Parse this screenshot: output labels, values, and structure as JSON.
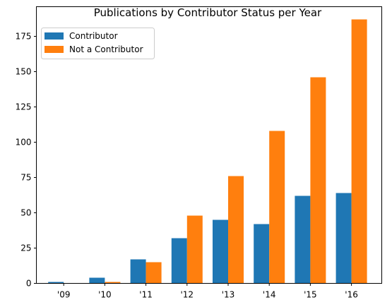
{
  "chart_data": {
    "type": "bar",
    "title": "Publications by Contributor Status per Year",
    "xlabel": "",
    "ylabel": "",
    "categories": [
      "'09",
      "'10",
      "'11",
      "'12",
      "'13",
      "'14",
      "'15",
      "'16"
    ],
    "series": [
      {
        "name": "Contributor",
        "color": "#1f77b4",
        "values": [
          1,
          4,
          17,
          32,
          45,
          42,
          62,
          64
        ]
      },
      {
        "name": "Not a Contributor",
        "color": "#ff7f0e",
        "values": [
          0,
          1,
          15,
          48,
          76,
          108,
          146,
          187
        ]
      }
    ],
    "ylim": [
      0,
      196
    ],
    "yticks": [
      0,
      25,
      50,
      75,
      100,
      125,
      150,
      175
    ],
    "grid": false,
    "legend_position": "top-left"
  }
}
